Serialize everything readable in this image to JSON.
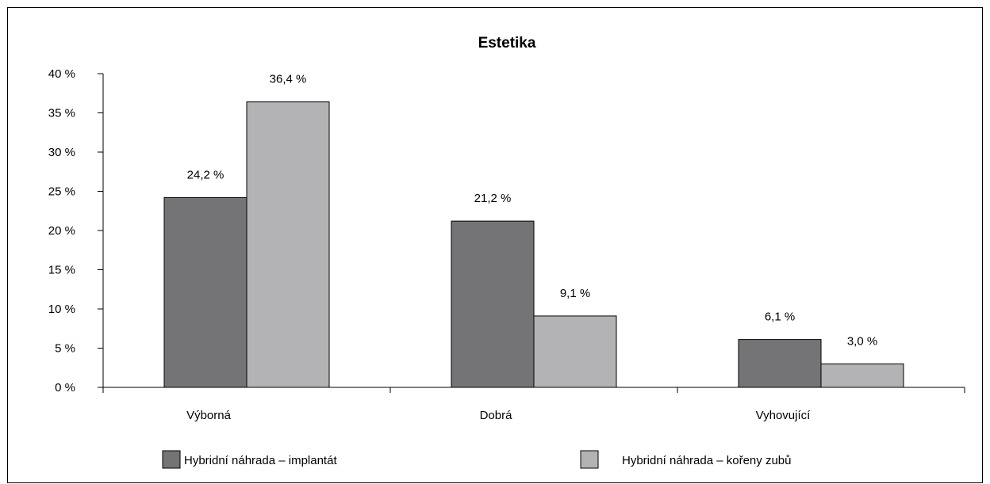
{
  "chart_data": {
    "type": "bar",
    "title": "Estetika",
    "xlabel": "",
    "ylabel": "",
    "categories": [
      "Výborná",
      "Dobrá",
      "Vyhovující"
    ],
    "series": [
      {
        "name": "Hybridní náhrada – implantát",
        "values": [
          24.2,
          21.2,
          6.1
        ],
        "labels": [
          "24,2 %",
          "21,2 %",
          "6,1 %"
        ],
        "color": "#747477"
      },
      {
        "name": "Hybridní náhrada – kořeny zubů",
        "values": [
          36.4,
          9.1,
          3.0
        ],
        "labels": [
          "36,4 %",
          "9,1 %",
          "3,0 %"
        ],
        "color": "#b3b3b6"
      }
    ],
    "ylim": [
      0,
      40
    ],
    "yticks": [
      0,
      5,
      10,
      15,
      20,
      25,
      30,
      35,
      40
    ],
    "ytick_labels": [
      "0 %",
      "5 %",
      "10 %",
      "15 %",
      "20 %",
      "25 %",
      "30 %",
      "35 %",
      "40 %"
    ],
    "grid": false,
    "legend_position": "bottom"
  }
}
